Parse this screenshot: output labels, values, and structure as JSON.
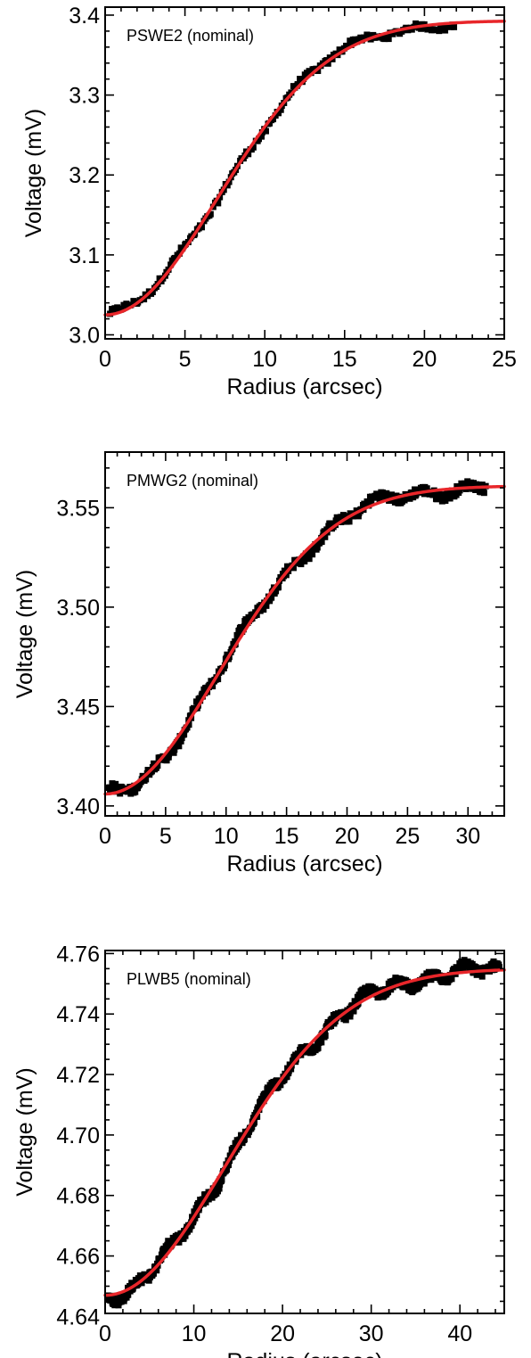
{
  "colors": {
    "data_points": "#000000",
    "model_curve": "#e8262a",
    "axes": "#000000"
  },
  "chart_data": [
    {
      "type": "scatter",
      "annotation": "PSWE2 (nominal)",
      "xlabel": "Radius (arcsec)",
      "ylabel": "Voltage (mV)",
      "xlim": [
        0,
        25
      ],
      "ylim": [
        2.995,
        3.41
      ],
      "xticks": [
        0,
        5,
        10,
        15,
        20,
        25
      ],
      "yticks": [
        3.0,
        3.1,
        3.2,
        3.3,
        3.4
      ],
      "ytick_labels": [
        "3.0",
        "3.1",
        "3.2",
        "3.3",
        "3.4"
      ],
      "xminor": 1,
      "yminor": 0.02,
      "grid": false,
      "data_x_range": [
        0.3,
        22
      ],
      "model": {
        "name": "",
        "y0": 3.025,
        "amplitude": 0.368,
        "sigma": 7.0,
        "xmax": 25
      },
      "points_per_unit": 9,
      "scatter_amplitude": 0.006
    },
    {
      "type": "scatter",
      "annotation": "PMWG2 (nominal)",
      "xlabel": "Radius (arcsec)",
      "ylabel": "Voltage (mV)",
      "xlim": [
        0,
        33
      ],
      "ylim": [
        3.395,
        3.578
      ],
      "xticks": [
        0,
        5,
        10,
        15,
        20,
        25,
        30
      ],
      "yticks": [
        3.4,
        3.45,
        3.5,
        3.55
      ],
      "ytick_labels": [
        "3.40",
        "3.45",
        "3.50",
        "3.55"
      ],
      "xminor": 1,
      "yminor": 0.01,
      "grid": false,
      "data_x_range": [
        0.3,
        31.5
      ],
      "model": {
        "name": "",
        "y0": 3.406,
        "amplitude": 0.155,
        "sigma": 9.4,
        "xmax": 33
      },
      "points_per_unit": 14,
      "scatter_amplitude": 0.0035
    },
    {
      "type": "scatter",
      "annotation": "PLWB5 (nominal)",
      "xlabel": "Radius (arcsec)",
      "ylabel": "Voltage (mV)",
      "xlim": [
        0,
        45
      ],
      "ylim": [
        4.641,
        4.761
      ],
      "xticks": [
        0,
        10,
        20,
        30,
        40
      ],
      "yticks": [
        4.64,
        4.66,
        4.68,
        4.7,
        4.72,
        4.74,
        4.76
      ],
      "ytick_labels": [
        "4.64",
        "4.66",
        "4.68",
        "4.70",
        "4.72",
        "4.74",
        "4.76"
      ],
      "xminor": 2,
      "yminor": 0.005,
      "grid": false,
      "data_x_range": [
        0.3,
        44.5
      ],
      "model": {
        "name": "",
        "y0": 4.647,
        "amplitude": 0.108,
        "sigma": 13.5,
        "xmax": 45
      },
      "points_per_unit": 16,
      "scatter_amplitude": 0.0025
    }
  ]
}
